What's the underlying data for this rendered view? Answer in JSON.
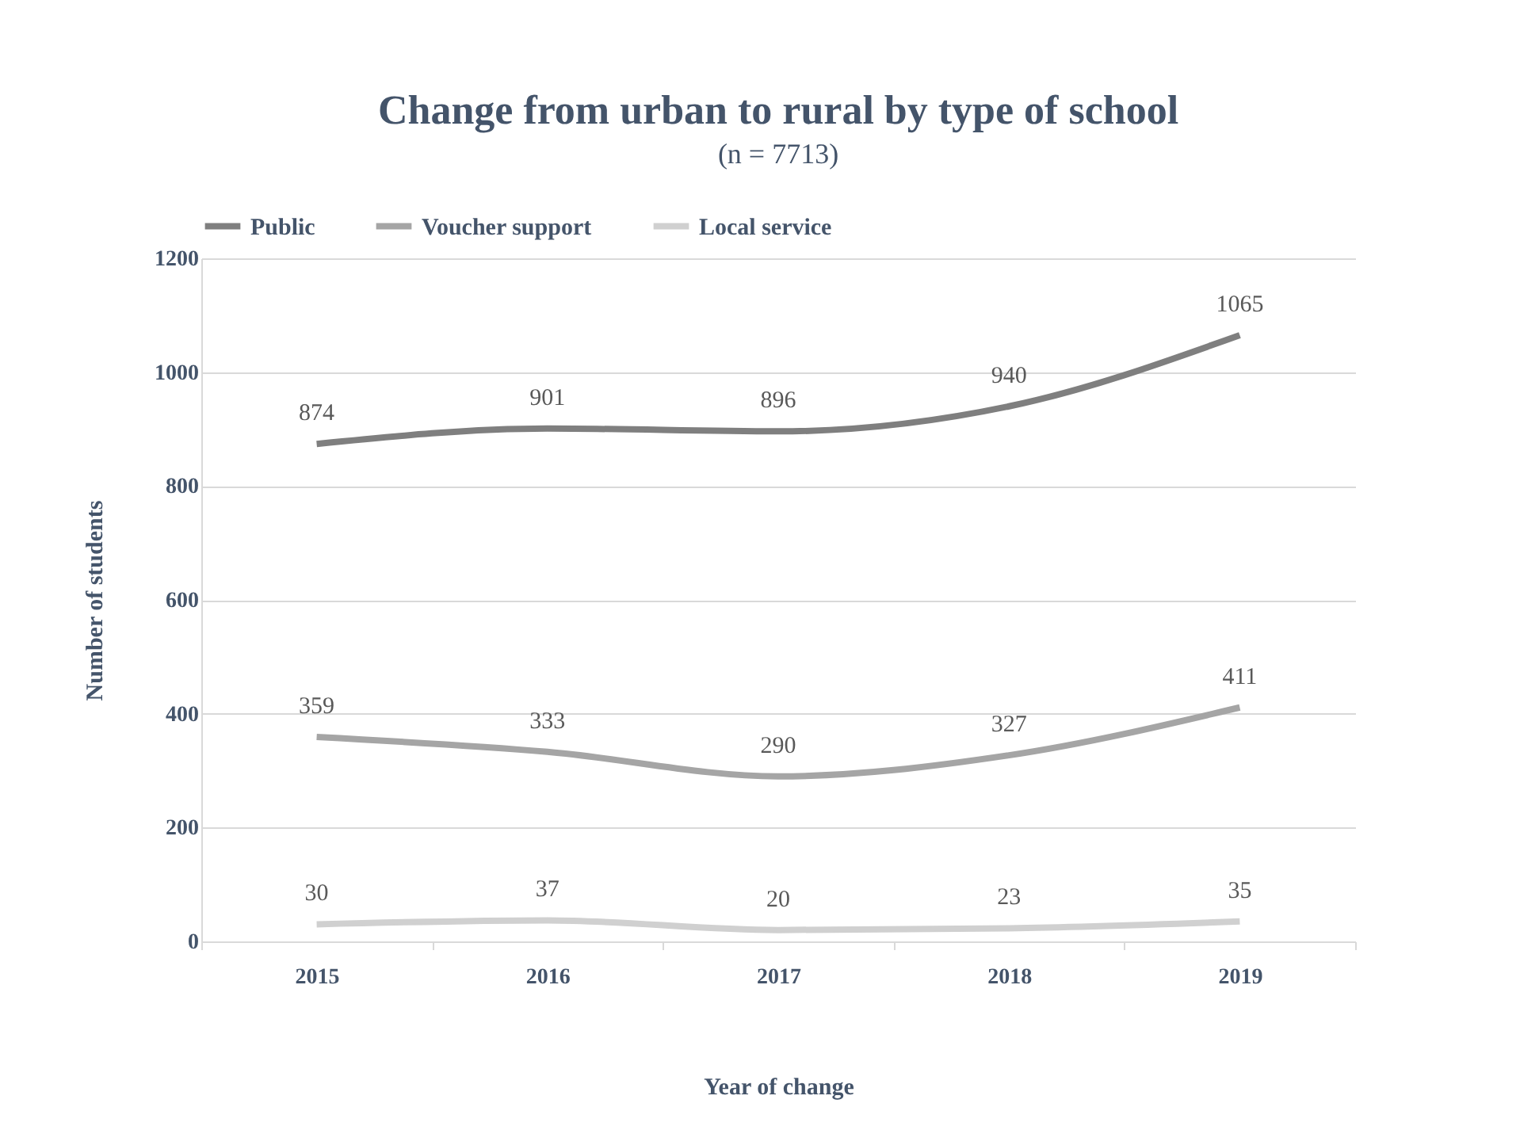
{
  "chart_data": {
    "type": "line",
    "title": "Change from urban to rural by type of school",
    "subtitle": "(n = 7713)",
    "xlabel": "Year of change",
    "ylabel": "Number of students",
    "categories": [
      "2015",
      "2016",
      "2017",
      "2018",
      "2019"
    ],
    "series": [
      {
        "name": "Public",
        "color": "#7f7f7f",
        "values": [
          874,
          901,
          896,
          940,
          1065
        ]
      },
      {
        "name": "Voucher support",
        "color": "#a5a5a5",
        "values": [
          359,
          333,
          290,
          327,
          411
        ]
      },
      {
        "name": "Local service",
        "color": "#d0d0d0",
        "values": [
          30,
          37,
          20,
          23,
          35
        ]
      }
    ],
    "ylim": [
      0,
      1200
    ],
    "yticks": [
      0,
      200,
      400,
      600,
      800,
      1000,
      1200
    ],
    "grid": "y",
    "legend": "top",
    "data_labels": true,
    "marker": "none",
    "line_style": "solid"
  }
}
